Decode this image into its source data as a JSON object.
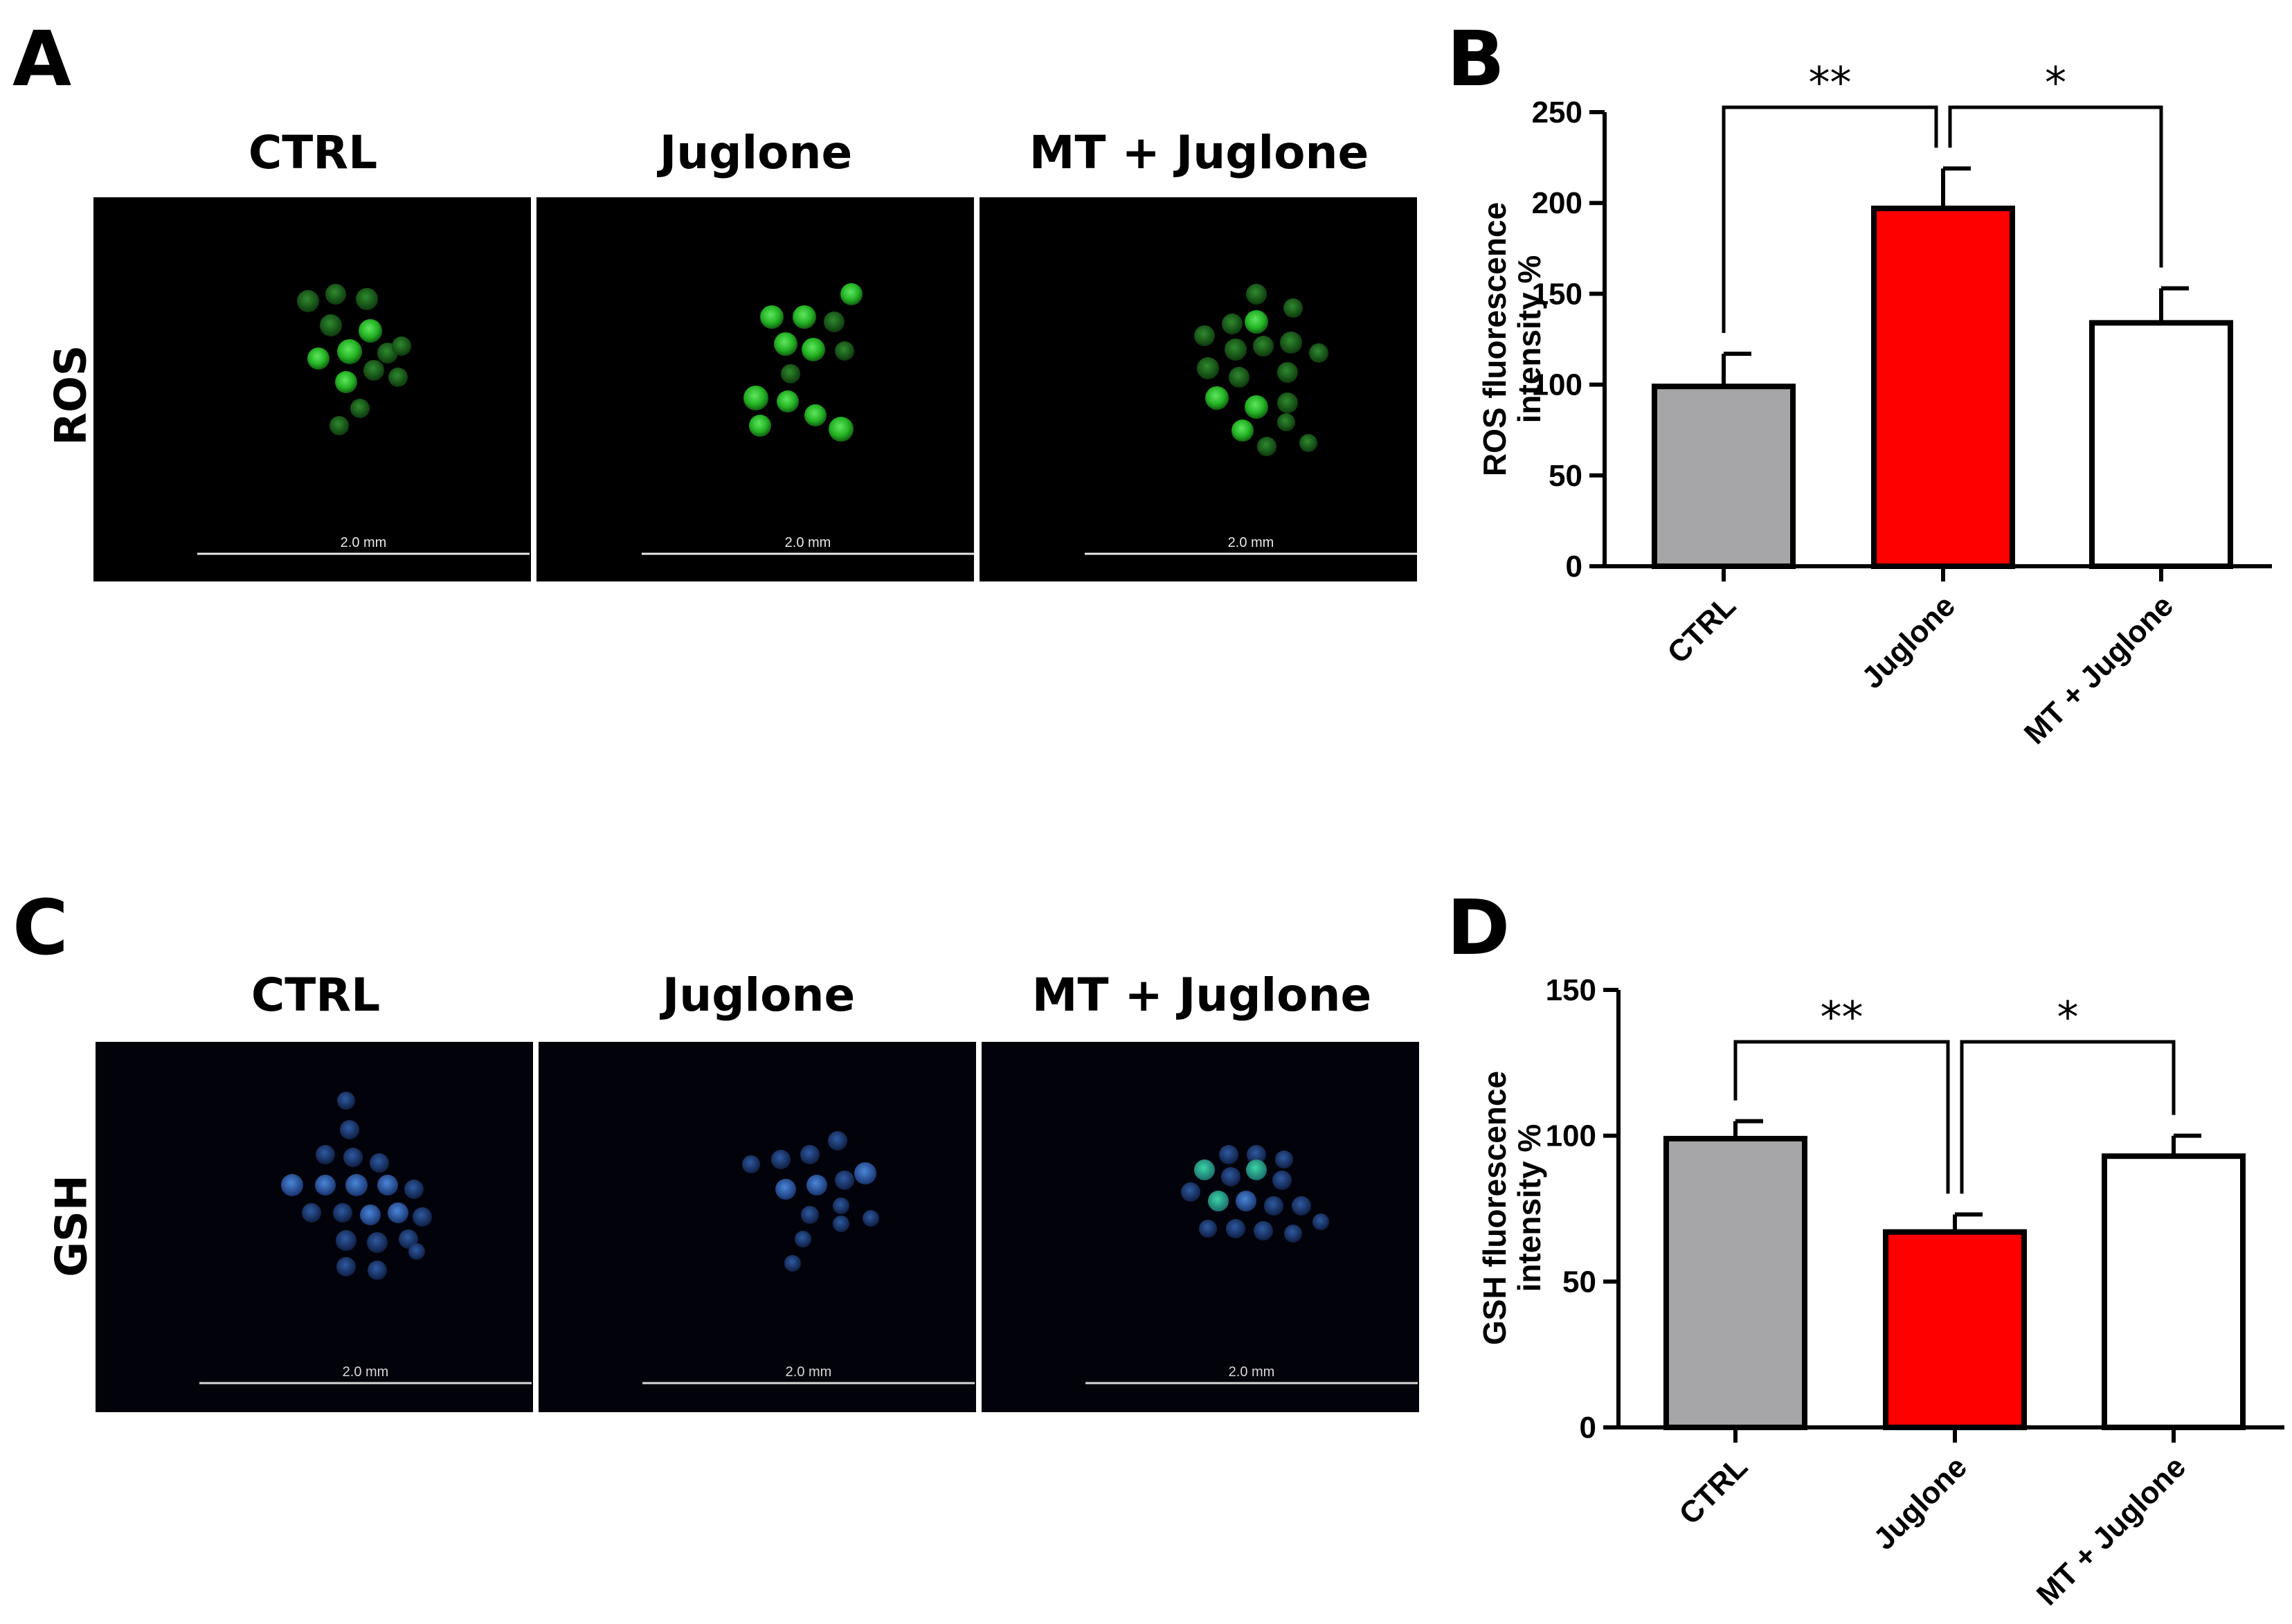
{
  "panels": {
    "A": "A",
    "B": "B",
    "C": "C",
    "D": "D"
  },
  "micrographs": {
    "top": {
      "row_label": "ROS",
      "columns": [
        "CTRL",
        "Juglone",
        "MT + Juglone"
      ],
      "scale_label": "2.0 mm",
      "tint": "#2fbf2f"
    },
    "bottom": {
      "row_label": "GSH",
      "columns": [
        "CTRL",
        "Juglone",
        "MT + Juglone"
      ],
      "scale_label": "2.0 mm",
      "tint": "#2c5aa8"
    }
  },
  "chart_data": [
    {
      "type": "bar",
      "categories": [
        "CTRL",
        "Juglone",
        "MT + Juglone"
      ],
      "values": [
        99,
        197,
        134
      ],
      "errors": [
        18,
        22,
        19
      ],
      "colors": [
        "#a6a6a8",
        "#ff0000",
        "#ffffff"
      ],
      "ylabel": "ROS fluorescence\nintensity %",
      "ylim": [
        0,
        250
      ],
      "yticks": [
        0,
        50,
        100,
        150,
        200,
        250
      ],
      "significance": [
        {
          "from": 0,
          "to": 1,
          "label": "**"
        },
        {
          "from": 1,
          "to": 2,
          "label": "*"
        }
      ]
    },
    {
      "type": "bar",
      "categories": [
        "CTRL",
        "Juglone",
        "MT + Juglone"
      ],
      "values": [
        99,
        67,
        93
      ],
      "errors": [
        6,
        6,
        7
      ],
      "colors": [
        "#a6a6a8",
        "#ff0000",
        "#ffffff"
      ],
      "ylabel": "GSH fluorescence\nintensity %",
      "ylim": [
        0,
        150
      ],
      "yticks": [
        0,
        50,
        100,
        150
      ],
      "significance": [
        {
          "from": 0,
          "to": 1,
          "label": "**"
        },
        {
          "from": 1,
          "to": 2,
          "label": "*"
        }
      ]
    }
  ]
}
